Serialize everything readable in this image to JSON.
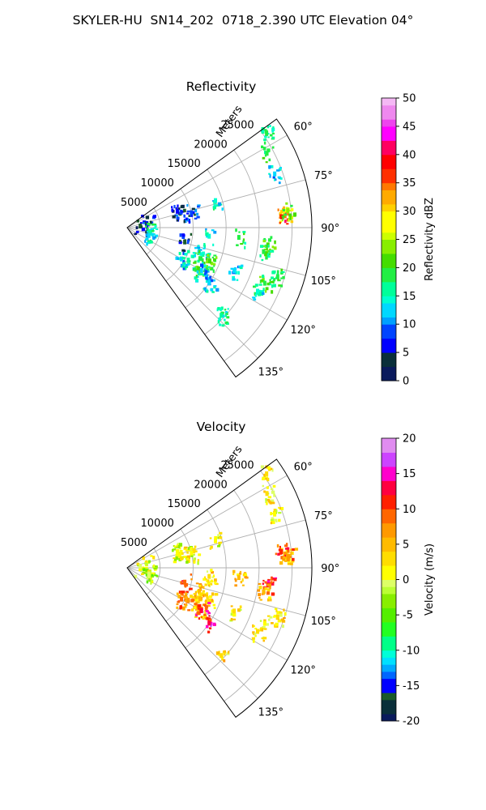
{
  "figure_title": "SKYLER-HU  SN14_202  0718_2.390 UTC Elevation 04°",
  "chart_data": [
    {
      "type": "polar-sector",
      "title": "Reflectivity",
      "radial_label": "Meters",
      "radial_ticks": [
        5000,
        10000,
        15000,
        20000,
        25000
      ],
      "radial_max": 28000,
      "azimuth_range_deg": [
        54,
        144
      ],
      "azimuth_ticks": [
        "60°",
        "75°",
        "90°",
        "105°",
        "120°",
        "135°"
      ],
      "colorbar": {
        "label": "Reflectivity dBZ",
        "min": 0,
        "max": 50,
        "ticks": [
          0,
          5,
          10,
          15,
          20,
          25,
          30,
          35,
          40,
          45,
          50
        ]
      },
      "echoes": [
        {
          "az": 85,
          "range": 24000,
          "value": 28
        },
        {
          "az": 86,
          "range": 23500,
          "value": 38
        },
        {
          "az": 84,
          "range": 24500,
          "value": 22
        },
        {
          "az": 62,
          "range": 24000,
          "value": 18
        },
        {
          "az": 56,
          "range": 25500,
          "value": 17
        },
        {
          "az": 70,
          "range": 23800,
          "value": 12
        },
        {
          "az": 73,
          "range": 14000,
          "value": 14
        },
        {
          "az": 74,
          "range": 8500,
          "value": 8
        },
        {
          "az": 72,
          "range": 8000,
          "value": 5
        },
        {
          "az": 77,
          "range": 10000,
          "value": 7
        },
        {
          "az": 78,
          "range": 3000,
          "value": 6
        },
        {
          "az": 83,
          "range": 2000,
          "value": 4
        },
        {
          "az": 95,
          "range": 17000,
          "value": 17
        },
        {
          "az": 97,
          "range": 21500,
          "value": 20
        },
        {
          "az": 100,
          "range": 21000,
          "value": 18
        },
        {
          "az": 96,
          "range": 12500,
          "value": 13
        },
        {
          "az": 104,
          "range": 9000,
          "value": 4
        },
        {
          "az": 108,
          "range": 11500,
          "value": 12
        },
        {
          "az": 113,
          "range": 12000,
          "value": 17
        },
        {
          "az": 112,
          "range": 13500,
          "value": 20
        },
        {
          "az": 120,
          "range": 9500,
          "value": 12
        },
        {
          "az": 118,
          "range": 10500,
          "value": 15
        },
        {
          "az": 120,
          "range": 12500,
          "value": 20
        },
        {
          "az": 100,
          "range": 3500,
          "value": 16
        },
        {
          "az": 110,
          "range": 3500,
          "value": 12
        },
        {
          "az": 120,
          "range": 13000,
          "value": 12
        },
        {
          "az": 112,
          "range": 17500,
          "value": 12
        },
        {
          "az": 108,
          "range": 24000,
          "value": 17
        },
        {
          "az": 112,
          "range": 22500,
          "value": 19
        },
        {
          "az": 116,
          "range": 22000,
          "value": 14
        },
        {
          "az": 124,
          "range": 15000,
          "value": 12
        },
        {
          "az": 133,
          "range": 19500,
          "value": 16
        }
      ]
    },
    {
      "type": "polar-sector",
      "title": "Velocity",
      "radial_label": "Meters",
      "radial_ticks": [
        5000,
        10000,
        15000,
        20000,
        25000
      ],
      "radial_max": 28000,
      "azimuth_range_deg": [
        54,
        144
      ],
      "azimuth_ticks": [
        "60°",
        "75°",
        "90°",
        "105°",
        "120°",
        "135°"
      ],
      "colorbar": {
        "label": "Velocity (m/s)",
        "min": -20,
        "max": 20,
        "ticks": [
          -20,
          -15,
          -10,
          -5,
          0,
          5,
          10,
          15,
          20
        ]
      },
      "echoes": [
        {
          "az": 85,
          "range": 24000,
          "value": 4
        },
        {
          "az": 84,
          "range": 23500,
          "value": 10
        },
        {
          "az": 86,
          "range": 24500,
          "value": 7
        },
        {
          "az": 62,
          "range": 24000,
          "value": 2
        },
        {
          "az": 56,
          "range": 25500,
          "value": 3
        },
        {
          "az": 70,
          "range": 23800,
          "value": 1
        },
        {
          "az": 73,
          "range": 14000,
          "value": 0
        },
        {
          "az": 74,
          "range": 8500,
          "value": 1
        },
        {
          "az": 72,
          "range": 8000,
          "value": 0
        },
        {
          "az": 77,
          "range": 10000,
          "value": 1
        },
        {
          "az": 78,
          "range": 3000,
          "value": 0
        },
        {
          "az": 83,
          "range": 2000,
          "value": -1
        },
        {
          "az": 95,
          "range": 17000,
          "value": 4
        },
        {
          "az": 97,
          "range": 21500,
          "value": 11
        },
        {
          "az": 100,
          "range": 21000,
          "value": 5
        },
        {
          "az": 96,
          "range": 12500,
          "value": 3
        },
        {
          "az": 104,
          "range": 9000,
          "value": 9
        },
        {
          "az": 108,
          "range": 11500,
          "value": 4
        },
        {
          "az": 113,
          "range": 12000,
          "value": 5
        },
        {
          "az": 112,
          "range": 13500,
          "value": 3
        },
        {
          "az": 120,
          "range": 9500,
          "value": 8
        },
        {
          "az": 118,
          "range": 10500,
          "value": 6
        },
        {
          "az": 120,
          "range": 12500,
          "value": 4
        },
        {
          "az": 100,
          "range": 3500,
          "value": -2
        },
        {
          "az": 110,
          "range": 3500,
          "value": -1
        },
        {
          "az": 120,
          "range": 13000,
          "value": 12
        },
        {
          "az": 112,
          "range": 17500,
          "value": 2
        },
        {
          "az": 108,
          "range": 24000,
          "value": 3
        },
        {
          "az": 112,
          "range": 22500,
          "value": 1
        },
        {
          "az": 116,
          "range": 22000,
          "value": 2
        },
        {
          "az": 124,
          "range": 15000,
          "value": 13
        },
        {
          "az": 133,
          "range": 19500,
          "value": 3
        }
      ]
    }
  ]
}
